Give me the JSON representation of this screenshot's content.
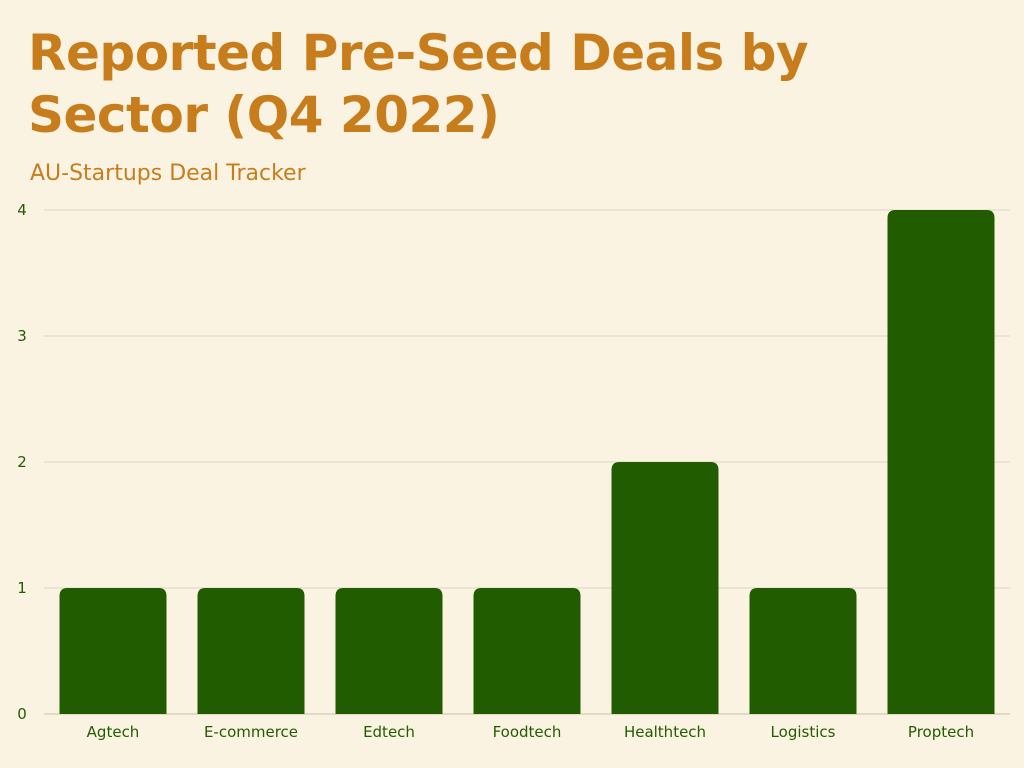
{
  "colors": {
    "background": "#fbf3e1",
    "title": "#c87d1c",
    "bar": "#225c00",
    "axis_text": "#225c00",
    "grid": "#d9d6c4"
  },
  "chart_data": {
    "type": "bar",
    "title": "Reported Pre-Seed Deals by Sector (Q4 2022)",
    "subtitle": "AU-Startups Deal Tracker",
    "xlabel": "",
    "ylabel": "",
    "categories": [
      "Agtech",
      "E-commerce",
      "Edtech",
      "Foodtech",
      "Healthtech",
      "Logistics",
      "Proptech"
    ],
    "values": [
      1,
      1,
      1,
      1,
      2,
      1,
      4
    ],
    "ylim": [
      0,
      4
    ],
    "yticks": [
      0,
      1,
      2,
      3,
      4
    ],
    "grid": true,
    "legend": "none"
  }
}
